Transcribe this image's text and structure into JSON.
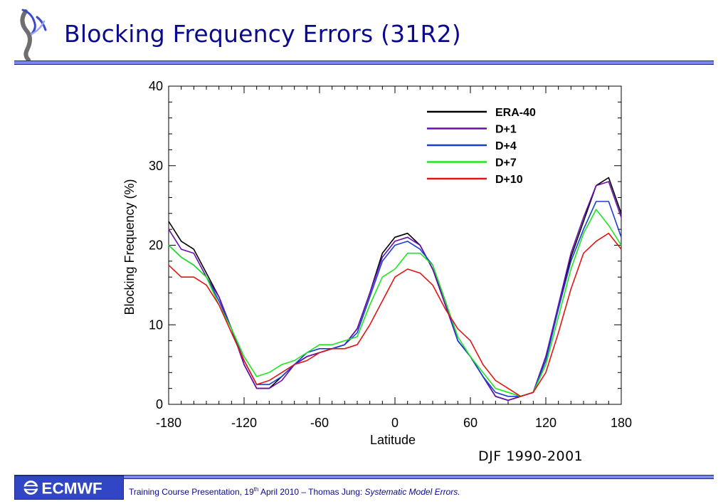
{
  "slide": {
    "title": "Blocking Frequency Errors (31R2)",
    "period": "DJF 1990-2001",
    "logo_text": "ECMWF",
    "footer": {
      "prefix": "Training Course Presentation, 19",
      "superscript": "th",
      "middle": " April 2010 – Thomas Jung: ",
      "italic": "Systematic Model Errors."
    },
    "colors": {
      "title": "#0a0a8c",
      "rule": "#7b87ea",
      "logo_bg": "#3046c5"
    }
  },
  "chart_data": {
    "type": "line",
    "xlabel": "Latitude",
    "ylabel": "Blocking Frequency (%)",
    "xlim": [
      -180,
      180
    ],
    "ylim": [
      0,
      40
    ],
    "x_ticks": [
      "-180",
      "-120",
      "-60",
      "0",
      "60",
      "120",
      "180"
    ],
    "x_tick_values": [
      -180,
      -120,
      -60,
      0,
      60,
      120,
      180
    ],
    "y_ticks": [
      "0",
      "10",
      "20",
      "30",
      "40"
    ],
    "y_tick_values": [
      0,
      10,
      20,
      30,
      40
    ],
    "grid": false,
    "legend_position": "top-right",
    "x": [
      -180,
      -170,
      -160,
      -150,
      -140,
      -130,
      -120,
      -110,
      -100,
      -90,
      -80,
      -70,
      -60,
      -50,
      -40,
      -30,
      -20,
      -10,
      0,
      10,
      20,
      30,
      40,
      50,
      60,
      70,
      80,
      90,
      100,
      110,
      120,
      130,
      140,
      150,
      160,
      170,
      180
    ],
    "series": [
      {
        "name": "ERA-40",
        "color": "#000000",
        "values": [
          23,
          20.5,
          19.5,
          16.5,
          13.5,
          9.5,
          5,
          2,
          2,
          3.5,
          5,
          6,
          6.5,
          7,
          7.5,
          9.5,
          14,
          19,
          21,
          21.5,
          20,
          17,
          13,
          8,
          6,
          3.5,
          1,
          0.5,
          1,
          1.5,
          6,
          12,
          18.5,
          23,
          27.5,
          28.5,
          24
        ]
      },
      {
        "name": "D+1",
        "color": "#6a0dad",
        "values": [
          22,
          19.5,
          19,
          16,
          13.5,
          9.5,
          5,
          2,
          2,
          3,
          5,
          6,
          6.5,
          7,
          7.5,
          9.5,
          14,
          18.5,
          20.5,
          21,
          20,
          17,
          12.5,
          8,
          6,
          3.5,
          1,
          0.5,
          1,
          1.5,
          6,
          12.5,
          19,
          23.5,
          27.5,
          28,
          23.5
        ]
      },
      {
        "name": "D+4",
        "color": "#1a3fd6",
        "values": [
          20,
          18.5,
          17.5,
          16,
          13,
          9.5,
          5.5,
          2.5,
          2.5,
          3.5,
          5,
          6.5,
          7,
          7,
          7.5,
          9,
          13.5,
          18,
          20,
          20.5,
          19.5,
          17.5,
          13,
          8,
          6,
          3.5,
          1.5,
          1,
          1,
          1.5,
          5.5,
          12,
          18,
          22,
          25.5,
          25.5,
          21
        ]
      },
      {
        "name": "D+7",
        "color": "#1ee61e",
        "values": [
          20,
          18.5,
          17.5,
          16,
          12.5,
          9.5,
          6,
          3.5,
          4,
          5,
          5.5,
          6.5,
          7.5,
          7.5,
          8,
          8.5,
          12.5,
          16,
          17,
          19,
          19,
          17.5,
          13,
          8.5,
          6,
          4,
          2,
          1.5,
          1,
          1.5,
          5,
          11,
          17,
          21.5,
          24.5,
          22.5,
          20
        ]
      },
      {
        "name": "D+10",
        "color": "#e01515",
        "values": [
          17.5,
          16,
          16,
          15,
          12.5,
          9,
          5.5,
          2.5,
          3,
          4,
          5,
          5.5,
          6.5,
          7,
          7,
          7.5,
          10,
          13,
          16,
          17,
          16.5,
          15,
          12,
          9.5,
          8,
          5,
          3,
          2,
          1,
          1.5,
          4,
          9,
          14.5,
          19,
          20.5,
          21.5,
          19.5
        ]
      }
    ]
  }
}
